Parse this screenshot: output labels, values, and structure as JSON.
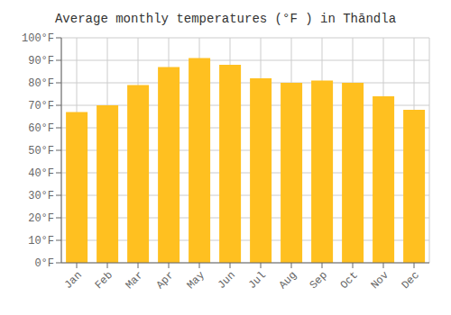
{
  "chart_data": {
    "type": "bar",
    "title": "Average monthly temperatures (°F ) in Thāndla",
    "categories": [
      "Jan",
      "Feb",
      "Mar",
      "Apr",
      "May",
      "Jun",
      "Jul",
      "Aug",
      "Sep",
      "Oct",
      "Nov",
      "Dec"
    ],
    "values": [
      67,
      70,
      79,
      87,
      91,
      88,
      82,
      80,
      81,
      80,
      74,
      68
    ],
    "color": "#FFC020",
    "ylim": [
      0,
      100
    ],
    "yticks": [
      {
        "value": 0,
        "label": "0°F"
      },
      {
        "value": 10,
        "label": "10°F"
      },
      {
        "value": 20,
        "label": "20°F"
      },
      {
        "value": 30,
        "label": "30°F"
      },
      {
        "value": 40,
        "label": "40°F"
      },
      {
        "value": 50,
        "label": "50°F"
      },
      {
        "value": 60,
        "label": "60°F"
      },
      {
        "value": 70,
        "label": "70°F"
      },
      {
        "value": 80,
        "label": "80°F"
      },
      {
        "value": 90,
        "label": "90°F"
      },
      {
        "value": 100,
        "label": "100°F"
      }
    ],
    "grid": true
  }
}
